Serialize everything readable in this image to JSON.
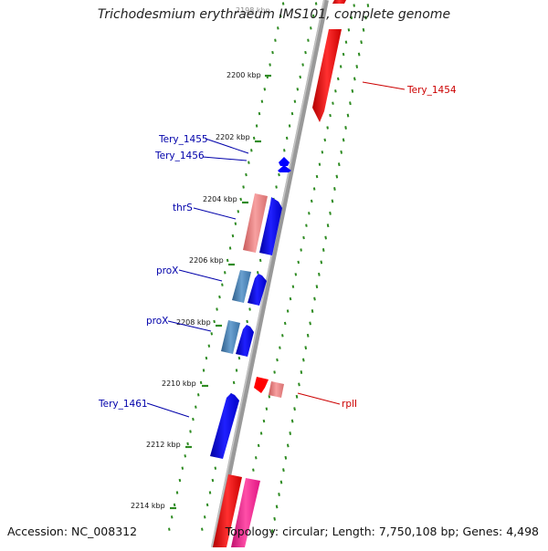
{
  "title": "Trichodesmium erythraeum IMS101, complete genome",
  "footer": {
    "accession": "Accession: NC_008312",
    "topology": "Topology: circular; Length: 7,750,108 bp; Genes: 4,498"
  },
  "scale_labels": [
    "2198 kbp",
    "2200 kbp",
    "2202 kbp",
    "2204 kbp",
    "2206 kbp",
    "2208 kbp",
    "2210 kbp",
    "2212 kbp",
    "2214 kbp"
  ],
  "gene_labels": {
    "tery_1454": "Tery_1454",
    "tery_1455": "Tery_1455",
    "tery_1456": "Tery_1456",
    "thrS": "thrS",
    "proX_1": "proX",
    "proX_2": "proX",
    "tery_1461": "Tery_1461",
    "rplI": "rplI"
  },
  "colors": {
    "backbone": "#8c8c8c",
    "tick": "#2e8b22",
    "forward_label": "#cc0000",
    "reverse_label": "#0000aa",
    "red": "#ff0000",
    "pink": "#f08080",
    "blue": "#0000ff",
    "steelblue": "#4682b4",
    "magenta": "#ff1493"
  }
}
